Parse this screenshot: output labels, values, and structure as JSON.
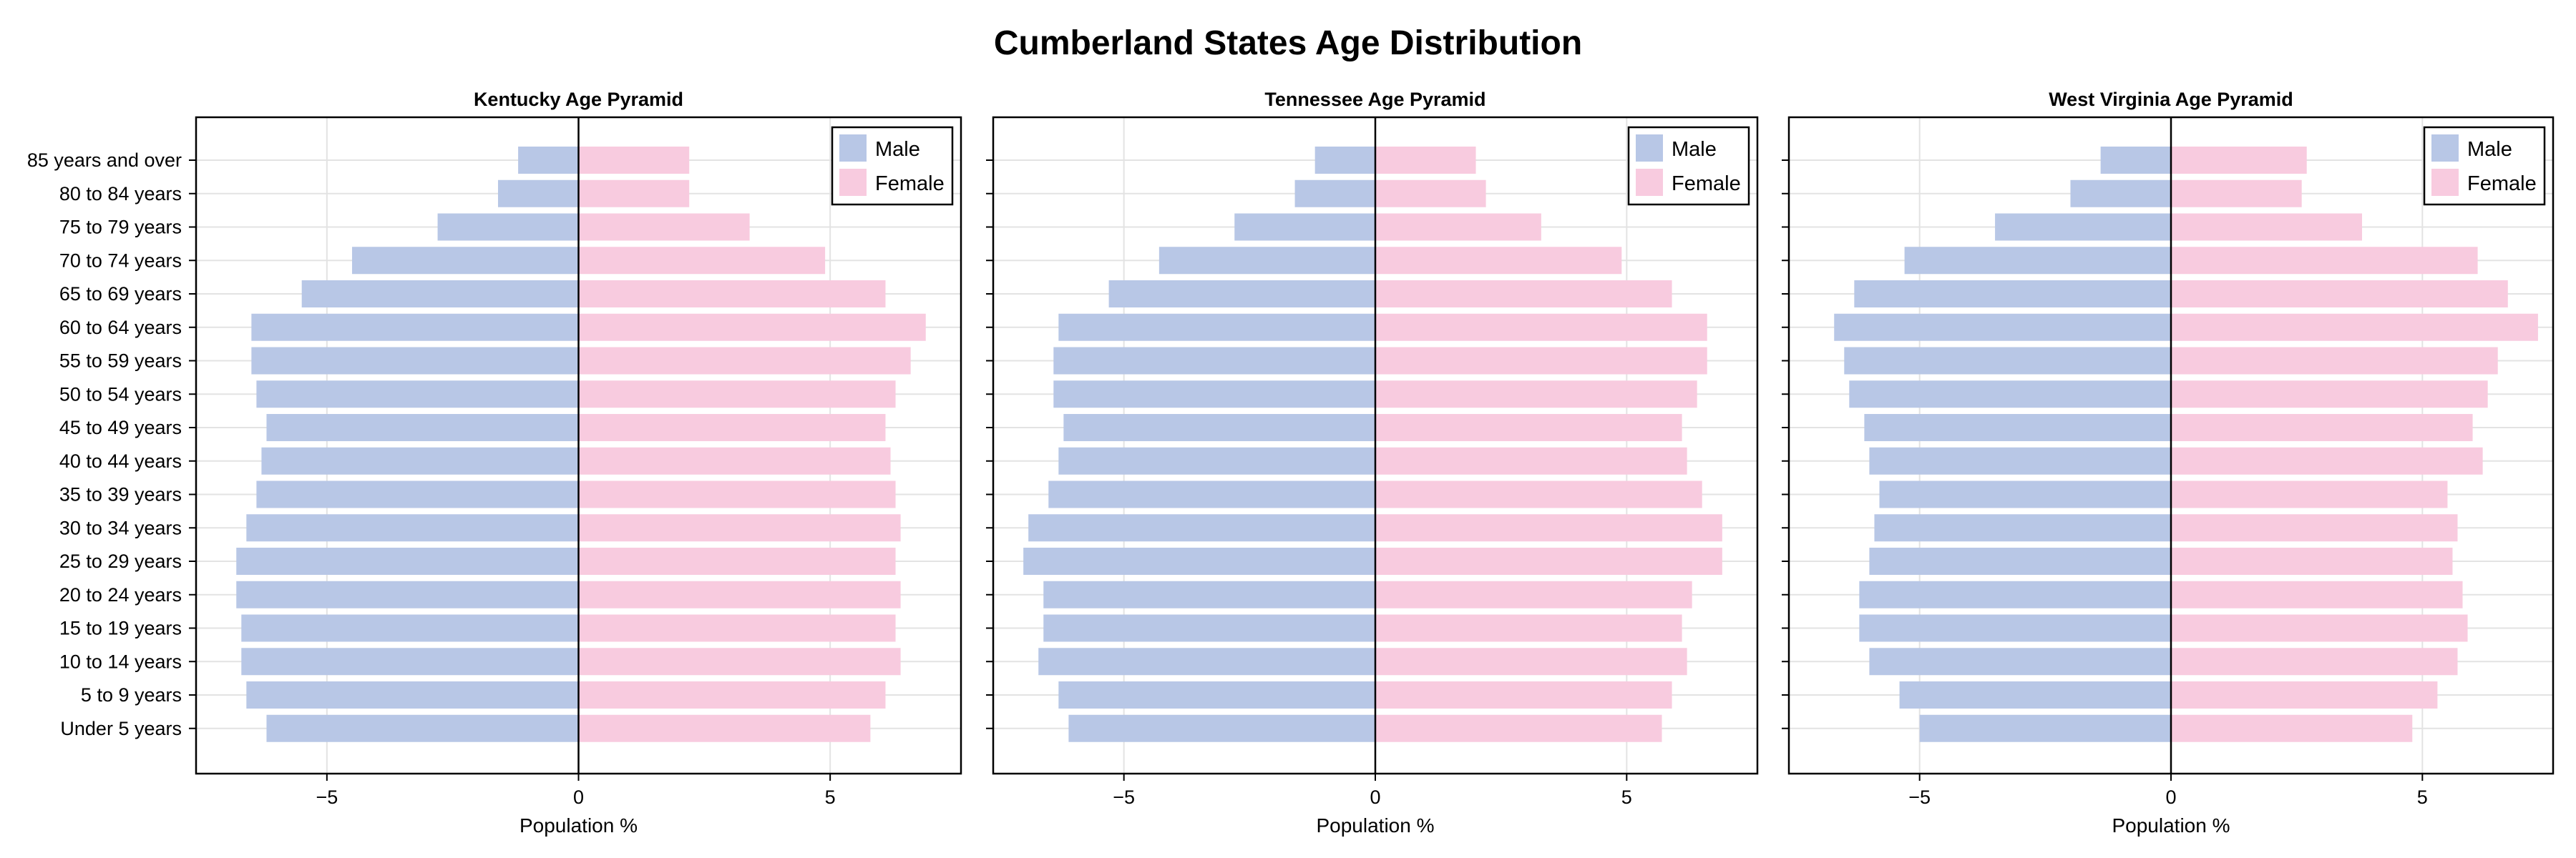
{
  "title": "Cumberland States Age Distribution",
  "colors": {
    "male": "#b8c7e6",
    "female": "#f8cbdf",
    "grid": "#e3e3e3",
    "axis": "#000000"
  },
  "legend": {
    "male_label": "Male",
    "female_label": "Female",
    "position": "top-right"
  },
  "chart_data": [
    {
      "type": "bar",
      "title": "Kentucky Age Pyramid",
      "xlabel": "Population %",
      "ylabel": "",
      "xlim": [
        -7.6,
        7.6
      ],
      "xticks": [
        -5,
        0,
        5
      ],
      "grid": true,
      "categories": [
        "85 years and over",
        "80 to 84 years",
        "75 to 79 years",
        "70 to 74 years",
        "65 to 69 years",
        "60 to 64 years",
        "55 to 59 years",
        "50 to 54 years",
        "45 to 49 years",
        "40 to 44 years",
        "35 to 39 years",
        "30 to 34 years",
        "25 to 29 years",
        "20 to 24 years",
        "15 to 19 years",
        "10 to 14 years",
        "5 to 9 years",
        "Under 5 years"
      ],
      "series": [
        {
          "name": "Male",
          "values": [
            -1.2,
            -1.6,
            -2.8,
            -4.5,
            -5.5,
            -6.5,
            -6.5,
            -6.4,
            -6.2,
            -6.3,
            -6.4,
            -6.6,
            -6.8,
            -6.8,
            -6.7,
            -6.7,
            -6.6,
            -6.2
          ]
        },
        {
          "name": "Female",
          "values": [
            2.2,
            2.2,
            3.4,
            4.9,
            6.1,
            6.9,
            6.6,
            6.3,
            6.1,
            6.2,
            6.3,
            6.4,
            6.3,
            6.4,
            6.3,
            6.4,
            6.1,
            5.8
          ]
        }
      ]
    },
    {
      "type": "bar",
      "title": "Tennessee Age Pyramid",
      "xlabel": "Population %",
      "ylabel": "",
      "xlim": [
        -7.6,
        7.6
      ],
      "xticks": [
        -5,
        0,
        5
      ],
      "grid": true,
      "categories": [
        "85 years and over",
        "80 to 84 years",
        "75 to 79 years",
        "70 to 74 years",
        "65 to 69 years",
        "60 to 64 years",
        "55 to 59 years",
        "50 to 54 years",
        "45 to 49 years",
        "40 to 44 years",
        "35 to 39 years",
        "30 to 34 years",
        "25 to 29 years",
        "20 to 24 years",
        "15 to 19 years",
        "10 to 14 years",
        "5 to 9 years",
        "Under 5 years"
      ],
      "series": [
        {
          "name": "Male",
          "values": [
            -1.2,
            -1.6,
            -2.8,
            -4.3,
            -5.3,
            -6.3,
            -6.4,
            -6.4,
            -6.2,
            -6.3,
            -6.5,
            -6.9,
            -7.0,
            -6.6,
            -6.6,
            -6.7,
            -6.3,
            -6.1
          ]
        },
        {
          "name": "Female",
          "values": [
            2.0,
            2.2,
            3.3,
            4.9,
            5.9,
            6.6,
            6.6,
            6.4,
            6.1,
            6.2,
            6.5,
            6.9,
            6.9,
            6.3,
            6.1,
            6.2,
            5.9,
            5.7
          ]
        }
      ]
    },
    {
      "type": "bar",
      "title": "West Virginia Age Pyramid",
      "xlabel": "Population %",
      "ylabel": "",
      "xlim": [
        -7.6,
        7.6
      ],
      "xticks": [
        -5,
        0,
        5
      ],
      "grid": true,
      "categories": [
        "85 years and over",
        "80 to 84 years",
        "75 to 79 years",
        "70 to 74 years",
        "65 to 69 years",
        "60 to 64 years",
        "55 to 59 years",
        "50 to 54 years",
        "45 to 49 years",
        "40 to 44 years",
        "35 to 39 years",
        "30 to 34 years",
        "25 to 29 years",
        "20 to 24 years",
        "15 to 19 years",
        "10 to 14 years",
        "5 to 9 years",
        "Under 5 years"
      ],
      "series": [
        {
          "name": "Male",
          "values": [
            -1.4,
            -2.0,
            -3.5,
            -5.3,
            -6.3,
            -6.7,
            -6.5,
            -6.4,
            -6.1,
            -6.0,
            -5.8,
            -5.9,
            -6.0,
            -6.2,
            -6.2,
            -6.0,
            -5.4,
            -5.0
          ]
        },
        {
          "name": "Female",
          "values": [
            2.7,
            2.6,
            3.8,
            6.1,
            6.7,
            7.3,
            6.5,
            6.3,
            6.0,
            6.2,
            5.5,
            5.7,
            5.6,
            5.8,
            5.9,
            5.7,
            5.3,
            4.8
          ]
        }
      ]
    }
  ]
}
